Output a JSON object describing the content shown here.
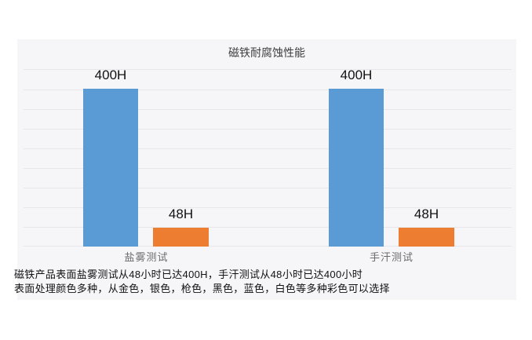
{
  "chart_data": {
    "type": "bar",
    "title": "磁铁耐腐蚀性能",
    "categories": [
      "盐雾测试",
      "手汗测试"
    ],
    "series": [
      {
        "color": "#5B9BD5",
        "values": [
          400,
          400
        ],
        "data_labels": [
          "400H",
          "400H"
        ]
      },
      {
        "color": "#ED7D31",
        "values": [
          48,
          48
        ],
        "data_labels": [
          "48H",
          "48H"
        ]
      }
    ],
    "groups": [
      {
        "category": "盐雾测试",
        "bars": [
          {
            "label": "400H",
            "value": 400,
            "color": "#5B9BD5"
          },
          {
            "label": "48H",
            "value": 48,
            "color": "#ED7D31"
          }
        ]
      },
      {
        "category": "手汗测试",
        "bars": [
          {
            "label": "400H",
            "value": 400,
            "color": "#5B9BD5"
          },
          {
            "label": "48H",
            "value": 48,
            "color": "#ED7D31"
          }
        ]
      }
    ],
    "ylim": [
      0,
      450
    ],
    "gridlines": {
      "visible": true,
      "interval": 50,
      "count": 10
    },
    "legend": "none",
    "xlabel": "",
    "ylabel": ""
  },
  "footer": {
    "lines": [
      "磁铁产品表面盐雾测试从48小时已达400H，手汗测试从48小时已达400小时",
      "表面处理颜色多种，从金色，银色，枪色，黑色，蓝色，白色等多种彩色可以选择"
    ]
  },
  "colors": {
    "bar_blue": "#5B9BD5",
    "bar_orange": "#ED7D31",
    "panel_background": "#f6f6f9",
    "gridline": "#e7e7eb",
    "title_text": "#3d3d3d",
    "category_text": "#6b6b6b",
    "footer_text": "#121212",
    "page_background": "#ffffff"
  }
}
